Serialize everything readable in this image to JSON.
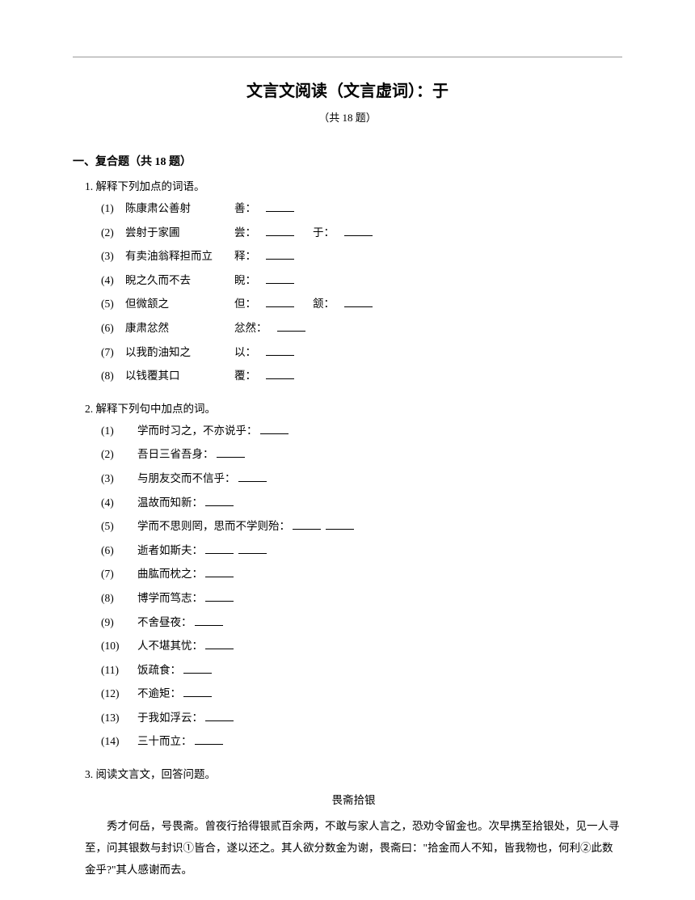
{
  "page_title": "文言文阅读（文言虚词）：于",
  "subtitle": "（共 18 题）",
  "section_header": "一、复合题（共 18 题）",
  "q1": {
    "num": "1. ",
    "text": "解释下列加点的词语。",
    "items": [
      {
        "num": "(1)",
        "phrase": "陈康肃公善射",
        "labels": [
          "善："
        ]
      },
      {
        "num": "(2)",
        "phrase": "尝射于家圃",
        "labels": [
          "尝：",
          "于："
        ]
      },
      {
        "num": "(3)",
        "phrase": "有卖油翁释担而立",
        "labels": [
          "释："
        ]
      },
      {
        "num": "(4)",
        "phrase": "睨之久而不去",
        "labels": [
          "睨："
        ]
      },
      {
        "num": "(5)",
        "phrase": "但微颔之",
        "labels": [
          "但：",
          "颔："
        ]
      },
      {
        "num": "(6)",
        "phrase": "康肃忿然",
        "labels": [
          "忿然："
        ]
      },
      {
        "num": "(7)",
        "phrase": "以我酌油知之",
        "labels": [
          "以："
        ]
      },
      {
        "num": "(8)",
        "phrase": "以钱覆其口",
        "labels": [
          "覆："
        ]
      }
    ]
  },
  "q2": {
    "num": "2. ",
    "text": "解释下列句中加点的词。",
    "items": [
      {
        "num": "(1)",
        "phrase": "学而时习之，不亦说乎：",
        "blanks": 1
      },
      {
        "num": "(2)",
        "phrase": "吾日三省吾身：",
        "blanks": 1
      },
      {
        "num": "(3)",
        "phrase": "与朋友交而不信乎：",
        "blanks": 1
      },
      {
        "num": "(4)",
        "phrase": "温故而知新：",
        "blanks": 1
      },
      {
        "num": "(5)",
        "phrase": "学而不思则罔，思而不学则殆：",
        "blanks": 2
      },
      {
        "num": "(6)",
        "phrase": "逝者如斯夫：",
        "blanks": 2
      },
      {
        "num": "(7)",
        "phrase": "曲肱而枕之：",
        "blanks": 1
      },
      {
        "num": "(8)",
        "phrase": "博学而笃志：",
        "blanks": 1
      },
      {
        "num": "(9)",
        "phrase": "不舍昼夜：",
        "blanks": 1
      },
      {
        "num": "(10)",
        "phrase": "人不堪其忧：",
        "blanks": 1
      },
      {
        "num": "(11)",
        "phrase": "饭疏食：",
        "blanks": 1
      },
      {
        "num": "(12)",
        "phrase": "不逾矩：",
        "blanks": 1
      },
      {
        "num": "(13)",
        "phrase": "于我如浮云：",
        "blanks": 1
      },
      {
        "num": "(14)",
        "phrase": "三十而立：",
        "blanks": 1
      }
    ]
  },
  "q3": {
    "num": "3. ",
    "text": "阅读文言文，回答问题。",
    "passage_title": "畏斋拾银",
    "passage_body": "秀才何岳，号畏斋。曾夜行拾得银贰百余两，不敢与家人言之，恐劝令留金也。次早携至拾银处，见一人寻至，问其银数与封识①皆合，遂以还之。其人欲分数金为谢，畏斋曰：\"拾金而人不知，皆我物也，何利②此数金乎?\"其人感谢而去。"
  }
}
